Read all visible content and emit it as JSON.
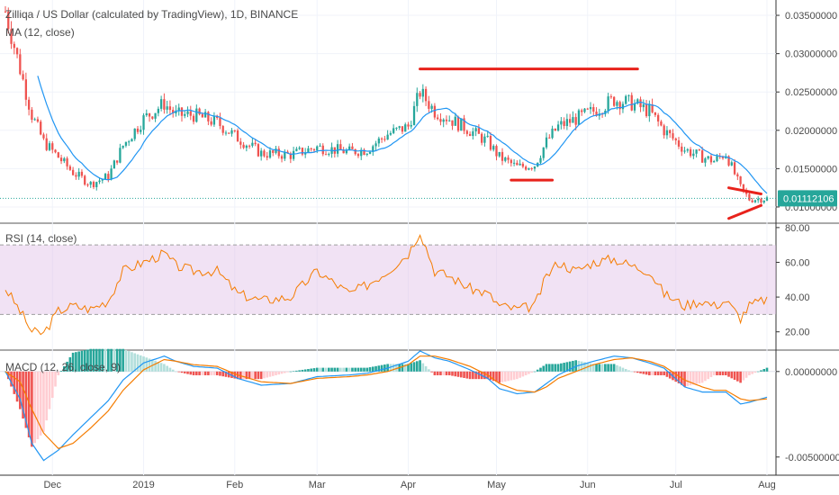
{
  "header": {
    "symbol_title": "Zilliqa / US Dollar (calculated by TradingView), 1D, BINANCE",
    "ma_label": "MA (12, close)",
    "rsi_label": "RSI (14, close)",
    "macd_label": "MACD (12, 26, close, 9)"
  },
  "current_price_label": "0.01112106",
  "colors": {
    "up_candle": "#26a69a",
    "down_candle": "#ef5350",
    "ma_line": "#2196f3",
    "rsi_line": "#f57c00",
    "rsi_band": "#e1bee7",
    "macd_line": "#2196f3",
    "signal_line": "#f57c00",
    "annotation": "#e8221b",
    "price_tag": "#26a69a"
  },
  "chart_data": [
    {
      "type": "candlestick",
      "title": "Zilliqa / US Dollar (calculated by TradingView), 1D, BINANCE",
      "overlay": "MA (12, close)",
      "y_ticks": [
        "0.03500000",
        "0.03000000",
        "0.02500000",
        "0.02000000",
        "0.01500000",
        "0.01000000"
      ],
      "ylim": [
        0.008,
        0.037
      ],
      "x_ticks": [
        "Dec",
        "2019",
        "Feb",
        "Mar",
        "Apr",
        "May",
        "Jun",
        "Jul",
        "Aug"
      ],
      "last_price": 0.01112106,
      "close_path": [
        [
          "2018-11-15",
          0.0355
        ],
        [
          "2018-11-20",
          0.028
        ],
        [
          "2018-11-24",
          0.022
        ],
        [
          "2018-11-28",
          0.0185
        ],
        [
          "2018-12-03",
          0.0165
        ],
        [
          "2018-12-08",
          0.0145
        ],
        [
          "2018-12-14",
          0.013
        ],
        [
          "2018-12-20",
          0.014
        ],
        [
          "2018-12-25",
          0.018
        ],
        [
          "2019-01-01",
          0.0215
        ],
        [
          "2019-01-08",
          0.0235
        ],
        [
          "2019-01-12",
          0.022
        ],
        [
          "2019-01-18",
          0.022
        ],
        [
          "2019-01-26",
          0.021
        ],
        [
          "2019-02-02",
          0.019
        ],
        [
          "2019-02-10",
          0.017
        ],
        [
          "2019-02-20",
          0.0168
        ],
        [
          "2019-03-01",
          0.0178
        ],
        [
          "2019-03-12",
          0.0172
        ],
        [
          "2019-03-18",
          0.0175
        ],
        [
          "2019-03-25",
          0.0195
        ],
        [
          "2019-04-01",
          0.0205
        ],
        [
          "2019-04-05",
          0.025
        ],
        [
          "2019-04-10",
          0.0225
        ],
        [
          "2019-04-15",
          0.0215
        ],
        [
          "2019-04-22",
          0.02
        ],
        [
          "2019-04-28",
          0.0185
        ],
        [
          "2019-05-02",
          0.0165
        ],
        [
          "2019-05-08",
          0.0152
        ],
        [
          "2019-05-14",
          0.0155
        ],
        [
          "2019-05-18",
          0.0185
        ],
        [
          "2019-05-22",
          0.0205
        ],
        [
          "2019-05-28",
          0.0215
        ],
        [
          "2019-06-03",
          0.0225
        ],
        [
          "2019-06-10",
          0.024
        ],
        [
          "2019-06-16",
          0.0235
        ],
        [
          "2019-06-22",
          0.0225
        ],
        [
          "2019-06-27",
          0.02
        ],
        [
          "2019-07-04",
          0.0175
        ],
        [
          "2019-07-10",
          0.0165
        ],
        [
          "2019-07-14",
          0.016
        ],
        [
          "2019-07-18",
          0.017
        ],
        [
          "2019-07-23",
          0.0125
        ],
        [
          "2019-07-26",
          0.011
        ],
        [
          "2019-08-01",
          0.0111
        ]
      ]
    },
    {
      "type": "line",
      "title": "RSI (14, close)",
      "y_ticks": [
        "80.00",
        "60.00",
        "40.00",
        "20.00"
      ],
      "ylim": [
        10,
        82
      ],
      "band": [
        30,
        70
      ],
      "series": [
        {
          "name": "RSI (14, close)",
          "points": [
            [
              "2018-11-15",
              45
            ],
            [
              "2018-11-20",
              32
            ],
            [
              "2018-11-24",
              20
            ],
            [
              "2018-11-28",
              19
            ],
            [
              "2018-12-03",
              32
            ],
            [
              "2018-12-08",
              35
            ],
            [
              "2018-12-14",
              33
            ],
            [
              "2018-12-20",
              38
            ],
            [
              "2018-12-25",
              55
            ],
            [
              "2019-01-01",
              60
            ],
            [
              "2019-01-08",
              65
            ],
            [
              "2019-01-12",
              58
            ],
            [
              "2019-01-18",
              55
            ],
            [
              "2019-01-26",
              55
            ],
            [
              "2019-02-02",
              42
            ],
            [
              "2019-02-10",
              38
            ],
            [
              "2019-02-20",
              40
            ],
            [
              "2019-03-01",
              55
            ],
            [
              "2019-03-12",
              42
            ],
            [
              "2019-03-18",
              47
            ],
            [
              "2019-03-25",
              55
            ],
            [
              "2019-04-01",
              65
            ],
            [
              "2019-04-05",
              78
            ],
            [
              "2019-04-10",
              55
            ],
            [
              "2019-04-15",
              52
            ],
            [
              "2019-04-22",
              45
            ],
            [
              "2019-04-28",
              42
            ],
            [
              "2019-05-02",
              35
            ],
            [
              "2019-05-08",
              33
            ],
            [
              "2019-05-14",
              35
            ],
            [
              "2019-05-18",
              52
            ],
            [
              "2019-05-22",
              60
            ],
            [
              "2019-05-28",
              55
            ],
            [
              "2019-06-03",
              60
            ],
            [
              "2019-06-10",
              62
            ],
            [
              "2019-06-16",
              58
            ],
            [
              "2019-06-22",
              55
            ],
            [
              "2019-06-27",
              42
            ],
            [
              "2019-07-04",
              35
            ],
            [
              "2019-07-10",
              38
            ],
            [
              "2019-07-14",
              35
            ],
            [
              "2019-07-18",
              38
            ],
            [
              "2019-07-23",
              28
            ],
            [
              "2019-07-26",
              35
            ],
            [
              "2019-08-01",
              39
            ]
          ]
        }
      ]
    },
    {
      "type": "line",
      "title": "MACD (12, 26, close, 9)",
      "y_ticks": [
        "0.00000000",
        "-0.00500000"
      ],
      "ylim": [
        -0.0058,
        0.0012
      ],
      "series": [
        {
          "name": "MACD",
          "points": [
            [
              "2018-11-15",
              0.0
            ],
            [
              "2018-11-20",
              -0.0016
            ],
            [
              "2018-11-24",
              -0.0042
            ],
            [
              "2018-11-28",
              -0.0052
            ],
            [
              "2018-12-03",
              -0.0046
            ],
            [
              "2018-12-08",
              -0.0037
            ],
            [
              "2018-12-14",
              -0.0027
            ],
            [
              "2018-12-20",
              -0.0017
            ],
            [
              "2018-12-25",
              -0.0005
            ],
            [
              "2019-01-01",
              0.0005
            ],
            [
              "2019-01-08",
              0.0009
            ],
            [
              "2019-01-12",
              0.0006
            ],
            [
              "2019-01-18",
              0.0003
            ],
            [
              "2019-01-26",
              0.0002
            ],
            [
              "2019-02-02",
              -0.0004
            ],
            [
              "2019-02-10",
              -0.0008
            ],
            [
              "2019-02-20",
              -0.0007
            ],
            [
              "2019-03-01",
              -0.0003
            ],
            [
              "2019-03-12",
              -0.0002
            ],
            [
              "2019-03-18",
              -0.0001
            ],
            [
              "2019-03-25",
              0.0002
            ],
            [
              "2019-04-01",
              0.0006
            ],
            [
              "2019-04-05",
              0.0012
            ],
            [
              "2019-04-10",
              0.0008
            ],
            [
              "2019-04-15",
              0.0006
            ],
            [
              "2019-04-22",
              0.0001
            ],
            [
              "2019-04-28",
              -0.0004
            ],
            [
              "2019-05-02",
              -0.001
            ],
            [
              "2019-05-08",
              -0.0013
            ],
            [
              "2019-05-14",
              -0.0012
            ],
            [
              "2019-05-18",
              -0.0007
            ],
            [
              "2019-05-22",
              -0.0002
            ],
            [
              "2019-05-28",
              0.0003
            ],
            [
              "2019-06-03",
              0.0006
            ],
            [
              "2019-06-10",
              0.0009
            ],
            [
              "2019-06-16",
              0.0008
            ],
            [
              "2019-06-22",
              0.0005
            ],
            [
              "2019-06-27",
              0.0002
            ],
            [
              "2019-07-04",
              -0.0009
            ],
            [
              "2019-07-10",
              -0.0012
            ],
            [
              "2019-07-14",
              -0.0012
            ],
            [
              "2019-07-18",
              -0.0012
            ],
            [
              "2019-07-23",
              -0.0019
            ],
            [
              "2019-07-26",
              -0.0018
            ],
            [
              "2019-08-01",
              -0.0015
            ]
          ]
        },
        {
          "name": "Signal",
          "points": [
            [
              "2018-11-15",
              0.0
            ],
            [
              "2018-11-20",
              -0.0006
            ],
            [
              "2018-11-24",
              -0.0022
            ],
            [
              "2018-11-28",
              -0.0036
            ],
            [
              "2018-12-03",
              -0.0045
            ],
            [
              "2018-12-08",
              -0.0042
            ],
            [
              "2018-12-14",
              -0.0033
            ],
            [
              "2018-12-20",
              -0.0023
            ],
            [
              "2018-12-25",
              -0.0011
            ],
            [
              "2019-01-01",
              0.0001
            ],
            [
              "2019-01-08",
              0.0007
            ],
            [
              "2019-01-12",
              0.0006
            ],
            [
              "2019-01-18",
              0.0004
            ],
            [
              "2019-01-26",
              0.0003
            ],
            [
              "2019-02-02",
              -0.0002
            ],
            [
              "2019-02-10",
              -0.0006
            ],
            [
              "2019-02-20",
              -0.0007
            ],
            [
              "2019-03-01",
              -0.0004
            ],
            [
              "2019-03-12",
              -0.0003
            ],
            [
              "2019-03-18",
              -0.0002
            ],
            [
              "2019-03-25",
              0.0
            ],
            [
              "2019-04-01",
              0.0004
            ],
            [
              "2019-04-05",
              0.0009
            ],
            [
              "2019-04-10",
              0.0009
            ],
            [
              "2019-04-15",
              0.0007
            ],
            [
              "2019-04-22",
              0.0003
            ],
            [
              "2019-04-28",
              -0.0002
            ],
            [
              "2019-05-02",
              -0.0007
            ],
            [
              "2019-05-08",
              -0.0011
            ],
            [
              "2019-05-14",
              -0.0012
            ],
            [
              "2019-05-18",
              -0.0009
            ],
            [
              "2019-05-22",
              -0.0004
            ],
            [
              "2019-05-28",
              0.0
            ],
            [
              "2019-06-03",
              0.0004
            ],
            [
              "2019-06-10",
              0.0007
            ],
            [
              "2019-06-16",
              0.0008
            ],
            [
              "2019-06-22",
              0.0006
            ],
            [
              "2019-06-27",
              0.0003
            ],
            [
              "2019-07-04",
              -0.0005
            ],
            [
              "2019-07-10",
              -0.0009
            ],
            [
              "2019-07-14",
              -0.0011
            ],
            [
              "2019-07-18",
              -0.0011
            ],
            [
              "2019-07-23",
              -0.0016
            ],
            [
              "2019-07-26",
              -0.0017
            ],
            [
              "2019-08-01",
              -0.0016
            ]
          ]
        }
      ]
    }
  ],
  "annotations": {
    "resistance": {
      "from": [
        "2019-04-05",
        0.028
      ],
      "to": [
        "2019-06-18",
        0.028
      ]
    },
    "support": {
      "from": [
        "2019-05-06",
        0.0135
      ],
      "to": [
        "2019-05-20",
        0.0135
      ]
    },
    "wedge_upper": {
      "from": [
        "2019-07-19",
        0.0125
      ],
      "to": [
        "2019-07-30",
        0.0117
      ]
    },
    "wedge_lower": {
      "from": [
        "2019-07-19",
        0.0085
      ],
      "to": [
        "2019-07-30",
        0.0102
      ]
    }
  }
}
